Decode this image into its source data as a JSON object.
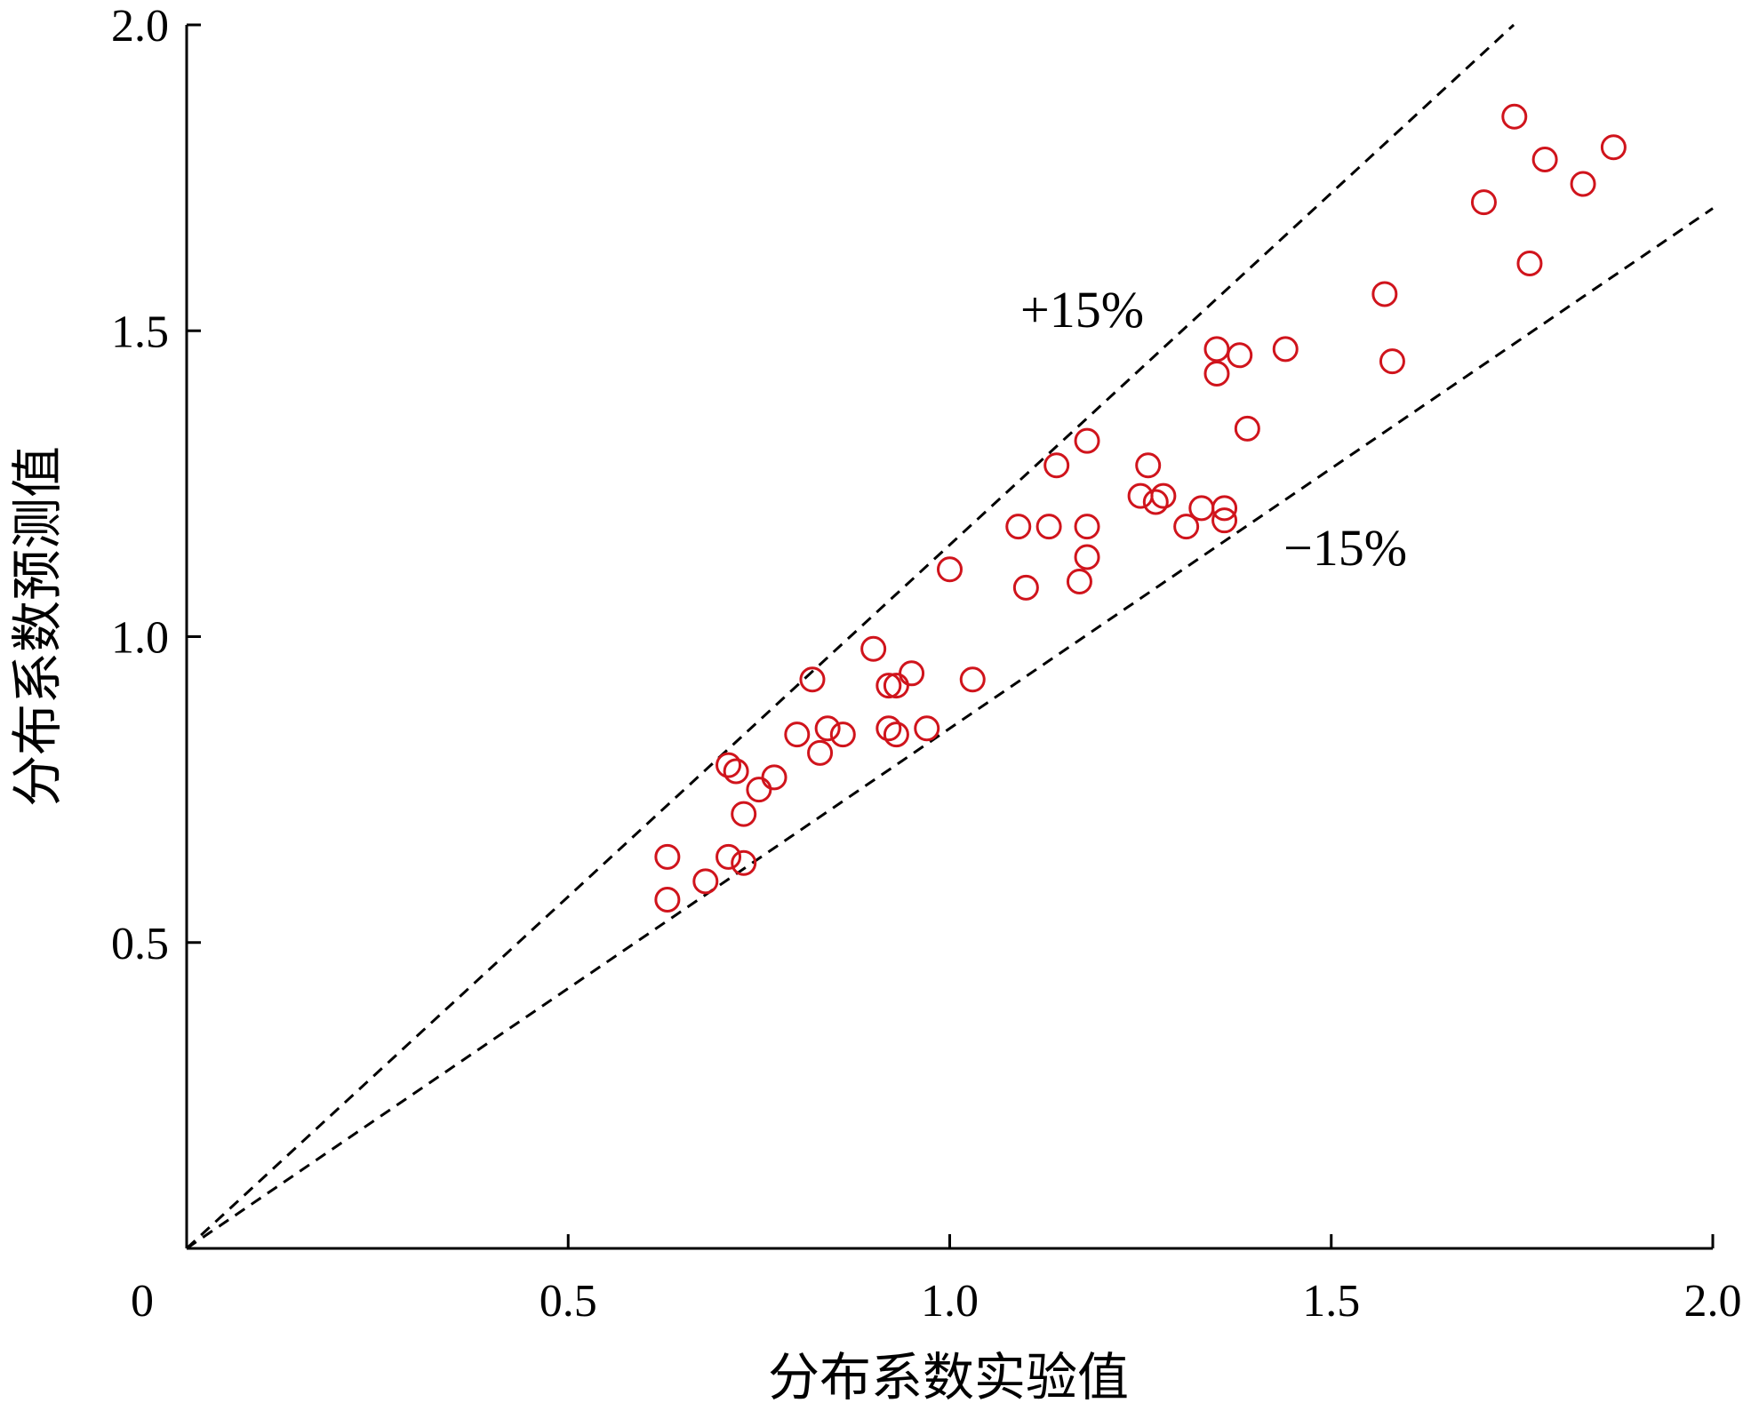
{
  "chart_data": {
    "type": "scatter",
    "title": "",
    "xlabel": "分布系数实验值",
    "ylabel": "分布系数预测值",
    "xlim": [
      0,
      2.0
    ],
    "ylim": [
      0,
      2.0
    ],
    "x_ticks": [
      0,
      0.5,
      1.0,
      1.5,
      2.0
    ],
    "x_tick_labels": [
      "0",
      "0.5",
      "1.0",
      "1.5",
      "2.0"
    ],
    "y_ticks": [
      0.5,
      1.0,
      1.5,
      2.0
    ],
    "y_tick_labels": [
      "0.5",
      "1.0",
      "1.5",
      "2.0"
    ],
    "grid": false,
    "legend": "none",
    "marker": "open-circle",
    "series": [
      {
        "color": "#d0141c",
        "points": [
          [
            0.63,
            0.64
          ],
          [
            0.63,
            0.57
          ],
          [
            0.68,
            0.6
          ],
          [
            0.71,
            0.64
          ],
          [
            0.73,
            0.63
          ],
          [
            0.71,
            0.79
          ],
          [
            0.72,
            0.78
          ],
          [
            0.73,
            0.71
          ],
          [
            0.75,
            0.75
          ],
          [
            0.77,
            0.77
          ],
          [
            0.8,
            0.84
          ],
          [
            0.82,
            0.93
          ],
          [
            0.83,
            0.81
          ],
          [
            0.84,
            0.85
          ],
          [
            0.86,
            0.84
          ],
          [
            0.9,
            0.98
          ],
          [
            0.92,
            0.92
          ],
          [
            0.92,
            0.85
          ],
          [
            0.93,
            0.92
          ],
          [
            0.93,
            0.84
          ],
          [
            0.95,
            0.94
          ],
          [
            0.97,
            0.85
          ],
          [
            1.0,
            1.11
          ],
          [
            1.03,
            0.93
          ],
          [
            1.09,
            1.18
          ],
          [
            1.1,
            1.08
          ],
          [
            1.13,
            1.18
          ],
          [
            1.14,
            1.28
          ],
          [
            1.17,
            1.09
          ],
          [
            1.18,
            1.13
          ],
          [
            1.18,
            1.18
          ],
          [
            1.18,
            1.32
          ],
          [
            1.25,
            1.23
          ],
          [
            1.26,
            1.28
          ],
          [
            1.27,
            1.22
          ],
          [
            1.28,
            1.23
          ],
          [
            1.31,
            1.18
          ],
          [
            1.33,
            1.21
          ],
          [
            1.35,
            1.47
          ],
          [
            1.35,
            1.43
          ],
          [
            1.36,
            1.21
          ],
          [
            1.36,
            1.19
          ],
          [
            1.38,
            1.46
          ],
          [
            1.39,
            1.34
          ],
          [
            1.44,
            1.47
          ],
          [
            1.57,
            1.56
          ],
          [
            1.58,
            1.45
          ],
          [
            1.7,
            1.71
          ],
          [
            1.74,
            1.85
          ],
          [
            1.76,
            1.61
          ],
          [
            1.78,
            1.78
          ],
          [
            1.83,
            1.74
          ],
          [
            1.87,
            1.8
          ]
        ]
      }
    ],
    "reference_lines": [
      {
        "label": "+15%",
        "slope": 1.15,
        "style": "dashed",
        "color": "#000000"
      },
      {
        "label": "−15%",
        "slope": 0.85,
        "style": "dashed",
        "color": "#000000"
      }
    ]
  }
}
